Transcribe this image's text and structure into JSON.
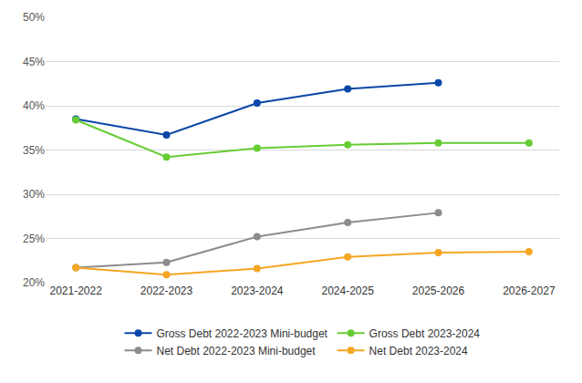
{
  "chart_data": {
    "type": "line",
    "categories": [
      "2021-2022",
      "2022-2023",
      "2023-2024",
      "2024-2025",
      "2025-2026",
      "2026-2027"
    ],
    "series": [
      {
        "name": "Gross Debt 2022-2023 Mini-budget",
        "color": "#0a47a8",
        "values": [
          38.5,
          36.7,
          40.3,
          41.9,
          42.6,
          null
        ]
      },
      {
        "name": "Gross Debt 2023-2024",
        "color": "#66cc33",
        "values": [
          38.4,
          34.2,
          35.2,
          35.6,
          35.8,
          35.8
        ]
      },
      {
        "name": "Net Debt 2022-2023 Mini-budget",
        "color": "#8c8c8c",
        "values": [
          21.7,
          22.3,
          25.2,
          26.8,
          27.9,
          null
        ]
      },
      {
        "name": "Net Debt 2023-2024",
        "color": "#f5a623",
        "values": [
          21.7,
          20.9,
          21.6,
          22.9,
          23.4,
          23.5
        ]
      }
    ],
    "ylim": [
      20,
      50
    ],
    "yticks": [
      {
        "value": 20,
        "label": "20%"
      },
      {
        "value": 25,
        "label": "25%"
      },
      {
        "value": 30,
        "label": "30%"
      },
      {
        "value": 35,
        "label": "35%"
      },
      {
        "value": 40,
        "label": "40%"
      },
      {
        "value": 45,
        "label": "45%"
      },
      {
        "value": 50,
        "label": "50%"
      }
    ],
    "grid": true,
    "legend": "bottom",
    "marker": "circle"
  }
}
